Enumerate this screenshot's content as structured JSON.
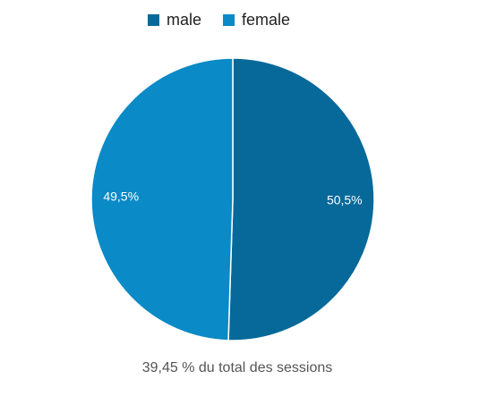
{
  "chart_data": {
    "type": "pie",
    "categories": [
      "male",
      "female"
    ],
    "values": [
      50.5,
      49.5
    ],
    "value_labels": [
      "50,5%",
      "49,5%"
    ],
    "colors": [
      "#06699a",
      "#0a8ac6"
    ],
    "legend": "top",
    "caption": "39,45 % du total des sessions"
  }
}
